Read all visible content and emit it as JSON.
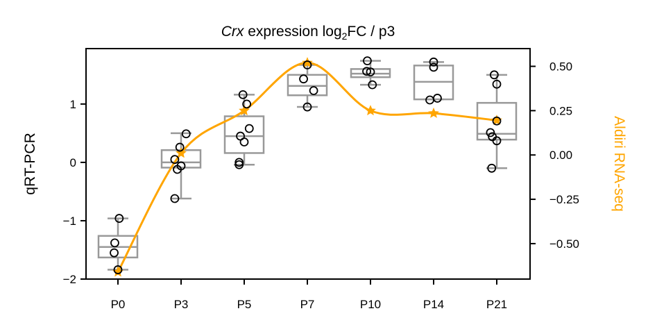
{
  "chart_data": {
    "type": "box",
    "title": {
      "italic": "Crx",
      "mid": " expression  log",
      "sub": "2",
      "end": "FC / p3"
    },
    "ylabel_left": "qRT-PCR",
    "ylabel_right": "Aldiri RNA-seq",
    "categories": [
      "P0",
      "P3",
      "P5",
      "P7",
      "P10",
      "P14",
      "P21"
    ],
    "y_left": {
      "range": [
        -2.0,
        1.95
      ],
      "ticks": [
        -2,
        -1,
        0,
        1
      ],
      "tick_labels": [
        "−2",
        "−1",
        "0",
        "1"
      ]
    },
    "y_right": {
      "range": [
        -0.7,
        0.6
      ],
      "ticks": [
        -0.5,
        -0.25,
        0.0,
        0.25,
        0.5
      ],
      "tick_labels": [
        "−0.50",
        "−0.25",
        "0.00",
        "0.25",
        "0.50"
      ]
    },
    "boxes": [
      {
        "category": "P0",
        "whisker_low": -1.84,
        "q1": -1.63,
        "median": -1.45,
        "q3": -1.26,
        "whisker_high": -0.96
      },
      {
        "category": "P3",
        "whisker_low": -0.62,
        "q1": -0.09,
        "median": 0.0,
        "q3": 0.21,
        "whisker_high": 0.5
      },
      {
        "category": "P5",
        "whisker_low": -0.04,
        "q1": 0.16,
        "median": 0.45,
        "q3": 0.79,
        "whisker_high": 1.16
      },
      {
        "category": "P7",
        "whisker_low": 0.95,
        "q1": 1.15,
        "median": 1.31,
        "q3": 1.5,
        "whisker_high": 1.67
      },
      {
        "category": "P10",
        "whisker_low": 1.33,
        "q1": 1.46,
        "median": 1.52,
        "q3": 1.6,
        "whisker_high": 1.74
      },
      {
        "category": "P14",
        "whisker_low": 1.08,
        "q1": 1.08,
        "median": 1.38,
        "q3": 1.66,
        "whisker_high": 1.72
      },
      {
        "category": "P21",
        "whisker_low": -0.1,
        "q1": 0.39,
        "median": 0.49,
        "q3": 1.02,
        "whisker_high": 1.5
      }
    ],
    "points": [
      {
        "category": "P0",
        "jitter": 0.02,
        "y": -0.96
      },
      {
        "category": "P0",
        "jitter": -0.05,
        "y": -1.38
      },
      {
        "category": "P0",
        "jitter": -0.06,
        "y": -1.55
      },
      {
        "category": "P0",
        "jitter": 0.0,
        "y": -1.84
      },
      {
        "category": "P3",
        "jitter": 0.08,
        "y": 0.49
      },
      {
        "category": "P3",
        "jitter": -0.02,
        "y": 0.26
      },
      {
        "category": "P3",
        "jitter": -0.1,
        "y": 0.05
      },
      {
        "category": "P3",
        "jitter": 0.0,
        "y": -0.06
      },
      {
        "category": "P3",
        "jitter": -0.06,
        "y": -0.12
      },
      {
        "category": "P3",
        "jitter": -0.1,
        "y": -0.62
      },
      {
        "category": "P5",
        "jitter": -0.02,
        "y": 1.16
      },
      {
        "category": "P5",
        "jitter": 0.04,
        "y": 1.0
      },
      {
        "category": "P5",
        "jitter": 0.08,
        "y": 0.58
      },
      {
        "category": "P5",
        "jitter": -0.06,
        "y": 0.45
      },
      {
        "category": "P5",
        "jitter": 0.0,
        "y": 0.35
      },
      {
        "category": "P5",
        "jitter": -0.08,
        "y": 0.0
      },
      {
        "category": "P5",
        "jitter": -0.08,
        "y": -0.04
      },
      {
        "category": "P7",
        "jitter": 0.0,
        "y": 1.67
      },
      {
        "category": "P7",
        "jitter": -0.06,
        "y": 1.43
      },
      {
        "category": "P7",
        "jitter": 0.1,
        "y": 1.23
      },
      {
        "category": "P7",
        "jitter": 0.0,
        "y": 0.95
      },
      {
        "category": "P10",
        "jitter": -0.05,
        "y": 1.74
      },
      {
        "category": "P10",
        "jitter": -0.06,
        "y": 1.56
      },
      {
        "category": "P10",
        "jitter": 0.0,
        "y": 1.55
      },
      {
        "category": "P10",
        "jitter": 0.03,
        "y": 1.33
      },
      {
        "category": "P14",
        "jitter": 0.0,
        "y": 1.72
      },
      {
        "category": "P14",
        "jitter": 0.0,
        "y": 1.63
      },
      {
        "category": "P14",
        "jitter": 0.06,
        "y": 1.1
      },
      {
        "category": "P14",
        "jitter": -0.06,
        "y": 1.07
      },
      {
        "category": "P21",
        "jitter": -0.04,
        "y": 1.5
      },
      {
        "category": "P21",
        "jitter": 0.0,
        "y": 1.34
      },
      {
        "category": "P21",
        "jitter": 0.0,
        "y": 0.71
      },
      {
        "category": "P21",
        "jitter": -0.1,
        "y": 0.51
      },
      {
        "category": "P21",
        "jitter": -0.07,
        "y": 0.44
      },
      {
        "category": "P21",
        "jitter": 0.0,
        "y": 0.37
      },
      {
        "category": "P21",
        "jitter": -0.08,
        "y": -0.1
      }
    ],
    "rna_seq_series": {
      "name": "Aldiri RNA-seq",
      "values": [
        -0.66,
        0.01,
        0.25,
        0.52,
        0.25,
        0.235,
        0.195
      ]
    },
    "colors": {
      "box": "#999999",
      "points_edge": "#000000",
      "rna_seq": "#FFA500",
      "axis": "#000000",
      "text": "#000000"
    }
  }
}
